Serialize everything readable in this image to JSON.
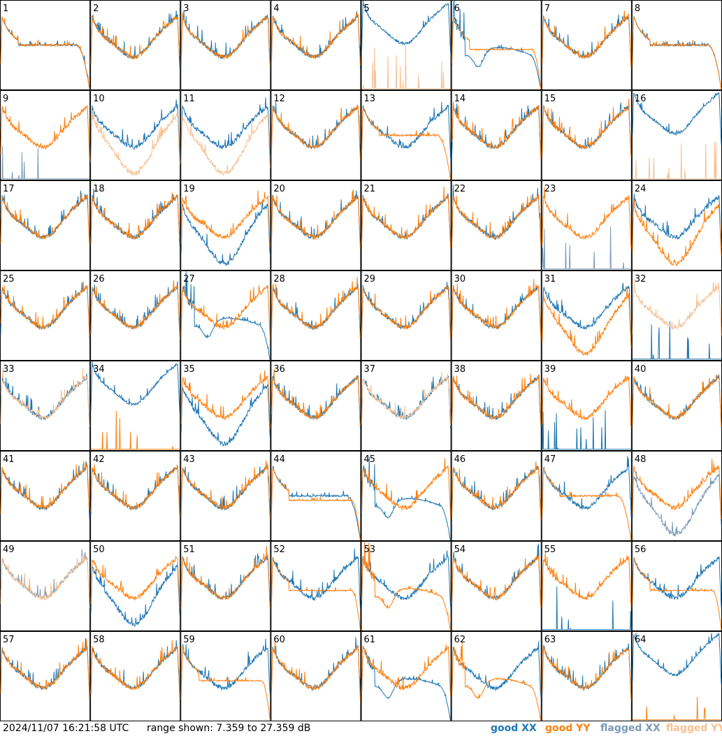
{
  "footer": {
    "timestamp": "2024/11/07 16:21:58 UTC",
    "range_text": "range shown: 7.359 to 27.359 dB"
  },
  "colors": {
    "good_xx": "#1f77b4",
    "good_yy": "#ff7f0e",
    "flagged_xx": "#7a9bb8",
    "flagged_yy": "#f8c092"
  },
  "chart_data": {
    "type": "line",
    "title": "",
    "ylim": [
      7.359,
      27.359
    ],
    "grid": false,
    "legend_position": "bottom-right",
    "legend": [
      {
        "label": "good XX",
        "color": "#1f77b4"
      },
      {
        "label": "good YY",
        "color": "#ff7f0e"
      },
      {
        "label": "flagged XX",
        "color": "#7a9bb8"
      },
      {
        "label": "flagged YY",
        "color": "#f8c092"
      }
    ],
    "panels": [
      {
        "label": "1",
        "xx": "roll",
        "yy": "roll",
        "xx_flag": false,
        "yy_flag": false
      },
      {
        "label": "2",
        "xx": "nominal",
        "yy": "nominal",
        "xx_flag": false,
        "yy_flag": false
      },
      {
        "label": "3",
        "xx": "nominal",
        "yy": "nominal",
        "xx_flag": false,
        "yy_flag": false
      },
      {
        "label": "4",
        "xx": "nominal",
        "yy": "nominal",
        "xx_flag": false,
        "yy_flag": false
      },
      {
        "label": "5",
        "xx": "high",
        "yy": "dead",
        "xx_flag": false,
        "yy_flag": true
      },
      {
        "label": "6",
        "xx": "deep",
        "yy": "flat",
        "xx_flag": false,
        "yy_flag": false
      },
      {
        "label": "7",
        "xx": "nominal",
        "yy": "nominal",
        "xx_flag": false,
        "yy_flag": false
      },
      {
        "label": "8",
        "xx": "roll",
        "yy": "roll",
        "xx_flag": false,
        "yy_flag": false
      },
      {
        "label": "9",
        "xx": "dead",
        "yy": "nominal",
        "xx_flag": true,
        "yy_flag": false
      },
      {
        "label": "10",
        "xx": "nominal",
        "yy": "low",
        "xx_flag": false,
        "yy_flag": true
      },
      {
        "label": "11",
        "xx": "nominal",
        "yy": "low",
        "xx_flag": false,
        "yy_flag": true
      },
      {
        "label": "12",
        "xx": "nominal",
        "yy": "nominal",
        "xx_flag": false,
        "yy_flag": false
      },
      {
        "label": "13",
        "xx": "nominal",
        "yy": "roll",
        "xx_flag": false,
        "yy_flag": false
      },
      {
        "label": "14",
        "xx": "nominal",
        "yy": "nominal",
        "xx_flag": false,
        "yy_flag": false
      },
      {
        "label": "15",
        "xx": "nominal",
        "yy": "nominal",
        "xx_flag": false,
        "yy_flag": false
      },
      {
        "label": "16",
        "xx": "high",
        "yy": "dead",
        "xx_flag": false,
        "yy_flag": true
      },
      {
        "label": "17",
        "xx": "nominal",
        "yy": "nominal",
        "xx_flag": false,
        "yy_flag": false
      },
      {
        "label": "18",
        "xx": "nominal",
        "yy": "nominal",
        "xx_flag": false,
        "yy_flag": false
      },
      {
        "label": "19",
        "xx": "low",
        "yy": "nominal",
        "xx_flag": false,
        "yy_flag": false
      },
      {
        "label": "20",
        "xx": "nominal",
        "yy": "nominal",
        "xx_flag": false,
        "yy_flag": false
      },
      {
        "label": "21",
        "xx": "nominal",
        "yy": "nominal",
        "xx_flag": false,
        "yy_flag": false
      },
      {
        "label": "22",
        "xx": "nominal",
        "yy": "nominal",
        "xx_flag": false,
        "yy_flag": false
      },
      {
        "label": "23",
        "xx": "dead",
        "yy": "nominal",
        "xx_flag": true,
        "yy_flag": false
      },
      {
        "label": "24",
        "xx": "nominal",
        "yy": "low",
        "xx_flag": false,
        "yy_flag": false
      },
      {
        "label": "25",
        "xx": "nominal",
        "yy": "nominal",
        "xx_flag": false,
        "yy_flag": false
      },
      {
        "label": "26",
        "xx": "nominal",
        "yy": "nominal",
        "xx_flag": false,
        "yy_flag": false
      },
      {
        "label": "27",
        "xx": "deep",
        "yy": "nominal",
        "xx_flag": false,
        "yy_flag": false
      },
      {
        "label": "28",
        "xx": "nominal",
        "yy": "nominal",
        "xx_flag": false,
        "yy_flag": false
      },
      {
        "label": "29",
        "xx": "nominal",
        "yy": "nominal",
        "xx_flag": false,
        "yy_flag": false
      },
      {
        "label": "30",
        "xx": "nominal",
        "yy": "nominal",
        "xx_flag": false,
        "yy_flag": false
      },
      {
        "label": "31",
        "xx": "nominal",
        "yy": "low",
        "xx_flag": false,
        "yy_flag": false
      },
      {
        "label": "32",
        "xx": "dead",
        "yy": "nominal",
        "xx_flag": false,
        "yy_flag": true
      },
      {
        "label": "33",
        "xx": "nominal",
        "yy": "nominal",
        "xx_flag": false,
        "yy_flag": true
      },
      {
        "label": "34",
        "xx": "high",
        "yy": "dead",
        "xx_flag": false,
        "yy_flag": false
      },
      {
        "label": "35",
        "xx": "low",
        "yy": "nominal",
        "xx_flag": false,
        "yy_flag": false
      },
      {
        "label": "36",
        "xx": "nominal",
        "yy": "nominal",
        "xx_flag": false,
        "yy_flag": false
      },
      {
        "label": "37",
        "xx": "nominal",
        "yy": "nominal",
        "xx_flag": false,
        "yy_flag": true
      },
      {
        "label": "38",
        "xx": "nominal",
        "yy": "nominal",
        "xx_flag": false,
        "yy_flag": false
      },
      {
        "label": "39",
        "xx": "dead",
        "yy": "nominal",
        "xx_flag": false,
        "yy_flag": false
      },
      {
        "label": "40",
        "xx": "nominal",
        "yy": "nominal",
        "xx_flag": false,
        "yy_flag": false
      },
      {
        "label": "41",
        "xx": "nominal",
        "yy": "nominal",
        "xx_flag": false,
        "yy_flag": false
      },
      {
        "label": "42",
        "xx": "nominal",
        "yy": "nominal",
        "xx_flag": false,
        "yy_flag": false
      },
      {
        "label": "43",
        "xx": "nominal",
        "yy": "nominal",
        "xx_flag": false,
        "yy_flag": false
      },
      {
        "label": "44",
        "xx": "roll",
        "yy": "flat",
        "xx_flag": false,
        "yy_flag": false
      },
      {
        "label": "45",
        "xx": "deep",
        "yy": "nominal",
        "xx_flag": false,
        "yy_flag": false
      },
      {
        "label": "46",
        "xx": "nominal",
        "yy": "nominal",
        "xx_flag": false,
        "yy_flag": false
      },
      {
        "label": "47",
        "xx": "nominal",
        "yy": "roll",
        "xx_flag": false,
        "yy_flag": false
      },
      {
        "label": "48",
        "xx": "low",
        "yy": "nominal",
        "xx_flag": true,
        "yy_flag": false
      },
      {
        "label": "49",
        "xx": "nominal",
        "yy": "nominal",
        "xx_flag": true,
        "yy_flag": true
      },
      {
        "label": "50",
        "xx": "low",
        "yy": "nominal",
        "xx_flag": false,
        "yy_flag": false
      },
      {
        "label": "51",
        "xx": "nominal",
        "yy": "nominal",
        "xx_flag": false,
        "yy_flag": false
      },
      {
        "label": "52",
        "xx": "nominal",
        "yy": "flat",
        "xx_flag": false,
        "yy_flag": false
      },
      {
        "label": "53",
        "xx": "nominal",
        "yy": "deep",
        "xx_flag": false,
        "yy_flag": false
      },
      {
        "label": "54",
        "xx": "nominal",
        "yy": "nominal",
        "xx_flag": false,
        "yy_flag": false
      },
      {
        "label": "55",
        "xx": "dead",
        "yy": "nominal",
        "xx_flag": false,
        "yy_flag": false
      },
      {
        "label": "56",
        "xx": "nominal",
        "yy": "flat",
        "xx_flag": false,
        "yy_flag": false
      },
      {
        "label": "57",
        "xx": "nominal",
        "yy": "nominal",
        "xx_flag": false,
        "yy_flag": false
      },
      {
        "label": "58",
        "xx": "nominal",
        "yy": "nominal",
        "xx_flag": false,
        "yy_flag": false
      },
      {
        "label": "59",
        "xx": "nominal",
        "yy": "flat",
        "xx_flag": false,
        "yy_flag": false
      },
      {
        "label": "60",
        "xx": "nominal",
        "yy": "nominal",
        "xx_flag": false,
        "yy_flag": false
      },
      {
        "label": "61",
        "xx": "deep",
        "yy": "nominal",
        "xx_flag": false,
        "yy_flag": false
      },
      {
        "label": "62",
        "xx": "nominal",
        "yy": "deep",
        "xx_flag": false,
        "yy_flag": false
      },
      {
        "label": "63",
        "xx": "nominal",
        "yy": "nominal",
        "xx_flag": false,
        "yy_flag": false
      },
      {
        "label": "64",
        "xx": "high",
        "yy": "dead",
        "xx_flag": false,
        "yy_flag": false
      }
    ]
  }
}
